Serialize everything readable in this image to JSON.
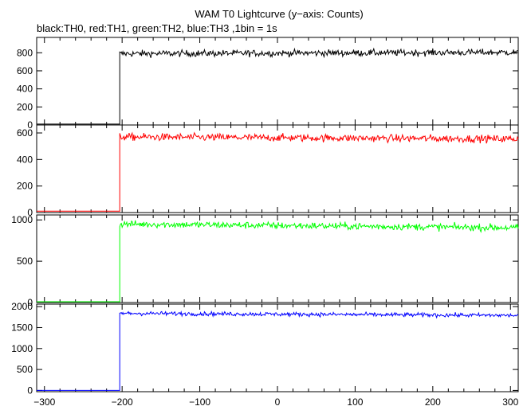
{
  "chart_data": {
    "type": "line",
    "title": "WAM T0 Lightcurve (y−axis: Counts)",
    "subtitle": "black:TH0, red:TH1, green:TH2, blue:TH3 ,1bin = 1s",
    "xlabel": "",
    "xlim": [
      -310,
      310
    ],
    "x_ticks": [
      -300,
      -200,
      -100,
      0,
      100,
      200,
      300
    ],
    "step_x": -203,
    "grid": false,
    "panels": [
      {
        "name": "TH0",
        "color": "#000000",
        "ylim": [
          0,
          970
        ],
        "y_ticks": [
          0,
          200,
          400,
          600,
          800
        ],
        "pre_level": 10,
        "level_start": 790,
        "level_end": 805,
        "noise": 26
      },
      {
        "name": "TH1",
        "color": "#ff0000",
        "ylim": [
          0,
          660
        ],
        "y_ticks": [
          0,
          200,
          400,
          600
        ],
        "pre_level": 10,
        "level_start": 570,
        "level_end": 555,
        "noise": 20
      },
      {
        "name": "TH2",
        "color": "#00ff00",
        "ylim": [
          0,
          1060
        ],
        "y_ticks": [
          0,
          500,
          1000
        ],
        "pre_level": 10,
        "level_start": 950,
        "level_end": 905,
        "noise": 30
      },
      {
        "name": "TH3",
        "color": "#0000ff",
        "ylim": [
          -30,
          2060
        ],
        "y_ticks": [
          0,
          500,
          1000,
          1500,
          2000
        ],
        "pre_level": 0,
        "level_start": 1840,
        "level_end": 1790,
        "noise": 35
      }
    ]
  }
}
